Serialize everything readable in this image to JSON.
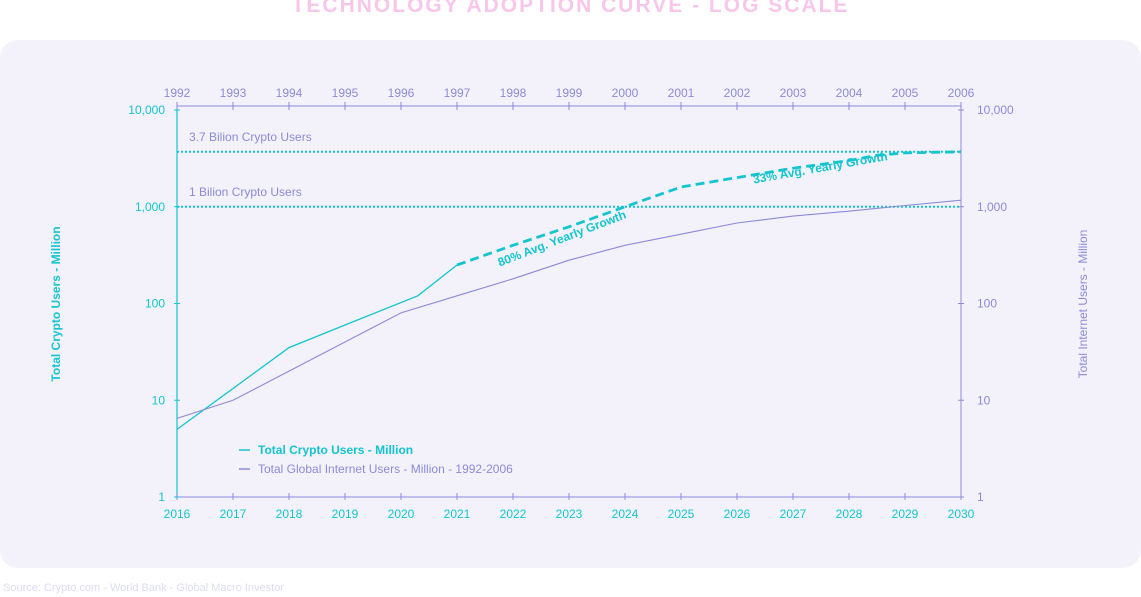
{
  "title": "TECHNOLOGY ADOPTION CURVE - LOG SCALE",
  "source": "Source: Crypto.com - World Bank - Global Macro Investor",
  "colors": {
    "crypto": "#14c4cf",
    "internet": "#8e89d9",
    "title": "#f7c6ea",
    "panel": "#f3f2fb"
  },
  "chart_data": {
    "type": "line",
    "scale": "log",
    "grid": false,
    "legend_position": "bottom-left",
    "title": "TECHNOLOGY ADOPTION CURVE - LOG SCALE",
    "y_left_label": "Total Crypto Users - Million",
    "y_right_label": "Total Internet Users - Million",
    "ylim": [
      1,
      10000
    ],
    "y_ticks": [
      "1",
      "10",
      "100",
      "1,000",
      "10,000"
    ],
    "x_bottom_ticks": [
      "2016",
      "2017",
      "2018",
      "2019",
      "2020",
      "2021",
      "2022",
      "2023",
      "2024",
      "2025",
      "2026",
      "2027",
      "2028",
      "2029",
      "2030"
    ],
    "x_top_ticks": [
      "1992",
      "1993",
      "1994",
      "1995",
      "1996",
      "1997",
      "1998",
      "1999",
      "2000",
      "2001",
      "2002",
      "2003",
      "2004",
      "2005",
      "2006"
    ],
    "xlim": [
      2016,
      2030
    ],
    "series": [
      {
        "name": "Total Crypto Users - Million",
        "style": "solid",
        "x": [
          2016,
          2018,
          2019,
          2020.3,
          2021
        ],
        "y": [
          5,
          35,
          60,
          120,
          250
        ]
      },
      {
        "name": "Total Crypto Users - Million",
        "style": "dashed",
        "x": [
          2021,
          2022,
          2023,
          2024,
          2025,
          2026,
          2027,
          2028,
          2028.5,
          2029,
          2030
        ],
        "y": [
          250,
          400,
          620,
          1000,
          1600,
          2000,
          2500,
          3000,
          3400,
          3600,
          3700
        ]
      },
      {
        "name": "Total Global Internet Users - Million - 1992-2006",
        "style": "solid",
        "x": [
          2016,
          2017,
          2018,
          2019,
          2020,
          2021,
          2022,
          2023,
          2024,
          2025,
          2026,
          2027,
          2028,
          2029,
          2030
        ],
        "y": [
          6.5,
          10,
          20,
          40,
          80,
          120,
          180,
          280,
          400,
          520,
          680,
          800,
          900,
          1030,
          1170
        ]
      }
    ],
    "reference_lines": [
      {
        "label": "3.7 Bilion Crypto Users",
        "y": 3700
      },
      {
        "label": "1 Bilion Crypto Users",
        "y": 1000
      }
    ],
    "annotations": [
      {
        "text": "80% Avg. Yearly Growth",
        "x": 2022.9,
        "y": 430
      },
      {
        "text": "33% Avg. Yearly Growth",
        "x": 2027.5,
        "y": 2300
      }
    ],
    "legend": [
      {
        "label": "Total Crypto Users - Million",
        "color": "#14c4cf"
      },
      {
        "label": "Total Global Internet Users - Million - 1992-2006",
        "color": "#8e89d9"
      }
    ]
  }
}
